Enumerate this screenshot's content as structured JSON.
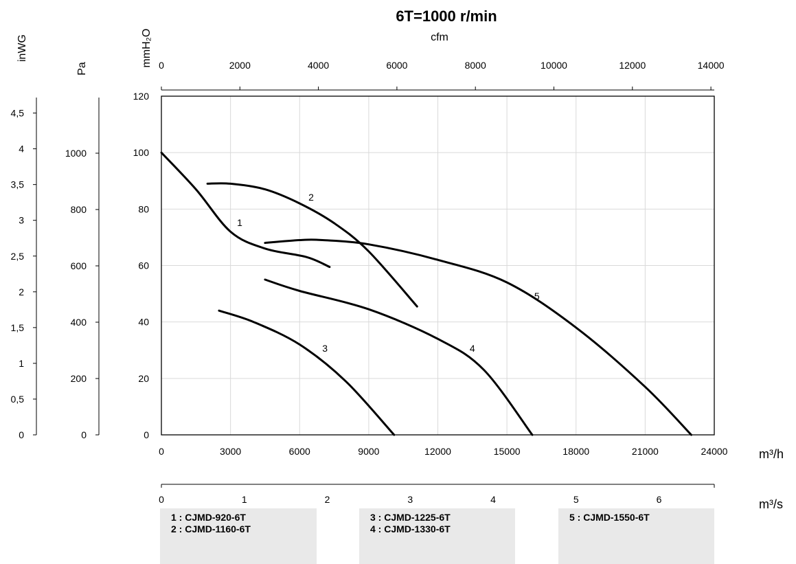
{
  "chart_data": {
    "type": "line",
    "title": "6T=1000 r/min",
    "x_axis": {
      "unit": "m³/h",
      "range": [
        0,
        24000
      ],
      "ticks": [
        "0",
        "3000",
        "6000",
        "9000",
        "12000",
        "15000",
        "18000",
        "21000",
        "24000"
      ]
    },
    "top_axis": {
      "unit": "cfm",
      "ticks": [
        "0",
        "2000",
        "4000",
        "6000",
        "8000",
        "10000",
        "12000",
        "14000"
      ]
    },
    "bottom_axis_2": {
      "unit": "m³/s",
      "ticks": [
        "0",
        "1",
        "2",
        "3",
        "4",
        "5",
        "6"
      ]
    },
    "y_axis": {
      "unit": "mmH₂O",
      "range": [
        0,
        120
      ],
      "ticks": [
        "0",
        "20",
        "40",
        "60",
        "80",
        "100",
        "120"
      ]
    },
    "y_axis_pa": {
      "unit": "Pa",
      "ticks": [
        "0",
        "200",
        "400",
        "600",
        "800",
        "1000"
      ]
    },
    "y_axis_inwg": {
      "unit": "inWG",
      "ticks": [
        "0",
        "0,5",
        "1",
        "1,5",
        "2",
        "2,5",
        "3",
        "3,5",
        "4",
        "4,5"
      ]
    },
    "grid": true,
    "series": [
      {
        "name": "1",
        "points": [
          [
            0,
            100
          ],
          [
            1500,
            87
          ],
          [
            3000,
            72
          ],
          [
            4500,
            66
          ],
          [
            6300,
            63
          ],
          [
            7300,
            59.5
          ]
        ],
        "label_at": [
          3400,
          74
        ]
      },
      {
        "name": "2",
        "points": [
          [
            2000,
            89
          ],
          [
            3000,
            89
          ],
          [
            4500,
            87
          ],
          [
            6000,
            82
          ],
          [
            7500,
            75
          ],
          [
            9000,
            65
          ],
          [
            11100,
            45.5
          ]
        ],
        "label_at": [
          6500,
          83
        ]
      },
      {
        "name": "3",
        "points": [
          [
            2500,
            44
          ],
          [
            4000,
            40
          ],
          [
            6000,
            32
          ],
          [
            8000,
            19
          ],
          [
            10100,
            0
          ]
        ],
        "label_at": [
          7100,
          29.5
        ]
      },
      {
        "name": "4",
        "points": [
          [
            4500,
            55
          ],
          [
            6000,
            51
          ],
          [
            9000,
            44.5
          ],
          [
            12000,
            34
          ],
          [
            14000,
            23
          ],
          [
            16100,
            0
          ]
        ],
        "label_at": [
          13500,
          29.5
        ]
      },
      {
        "name": "5",
        "points": [
          [
            4500,
            68
          ],
          [
            6000,
            69
          ],
          [
            7000,
            69
          ],
          [
            9000,
            67.5
          ],
          [
            12000,
            62
          ],
          [
            15000,
            54
          ],
          [
            18000,
            38
          ],
          [
            21000,
            17
          ],
          [
            23000,
            0
          ]
        ],
        "label_at": [
          16300,
          48
        ]
      }
    ]
  },
  "legend": [
    {
      "line1": "1 : CJMD-920-6T",
      "line2": "2 : CJMD-1160-6T"
    },
    {
      "line1": "3 : CJMD-1225-6T",
      "line2": "4 : CJMD-1330-6T"
    },
    {
      "line1": "5 : CJMD-1550-6T",
      "line2": ""
    }
  ]
}
